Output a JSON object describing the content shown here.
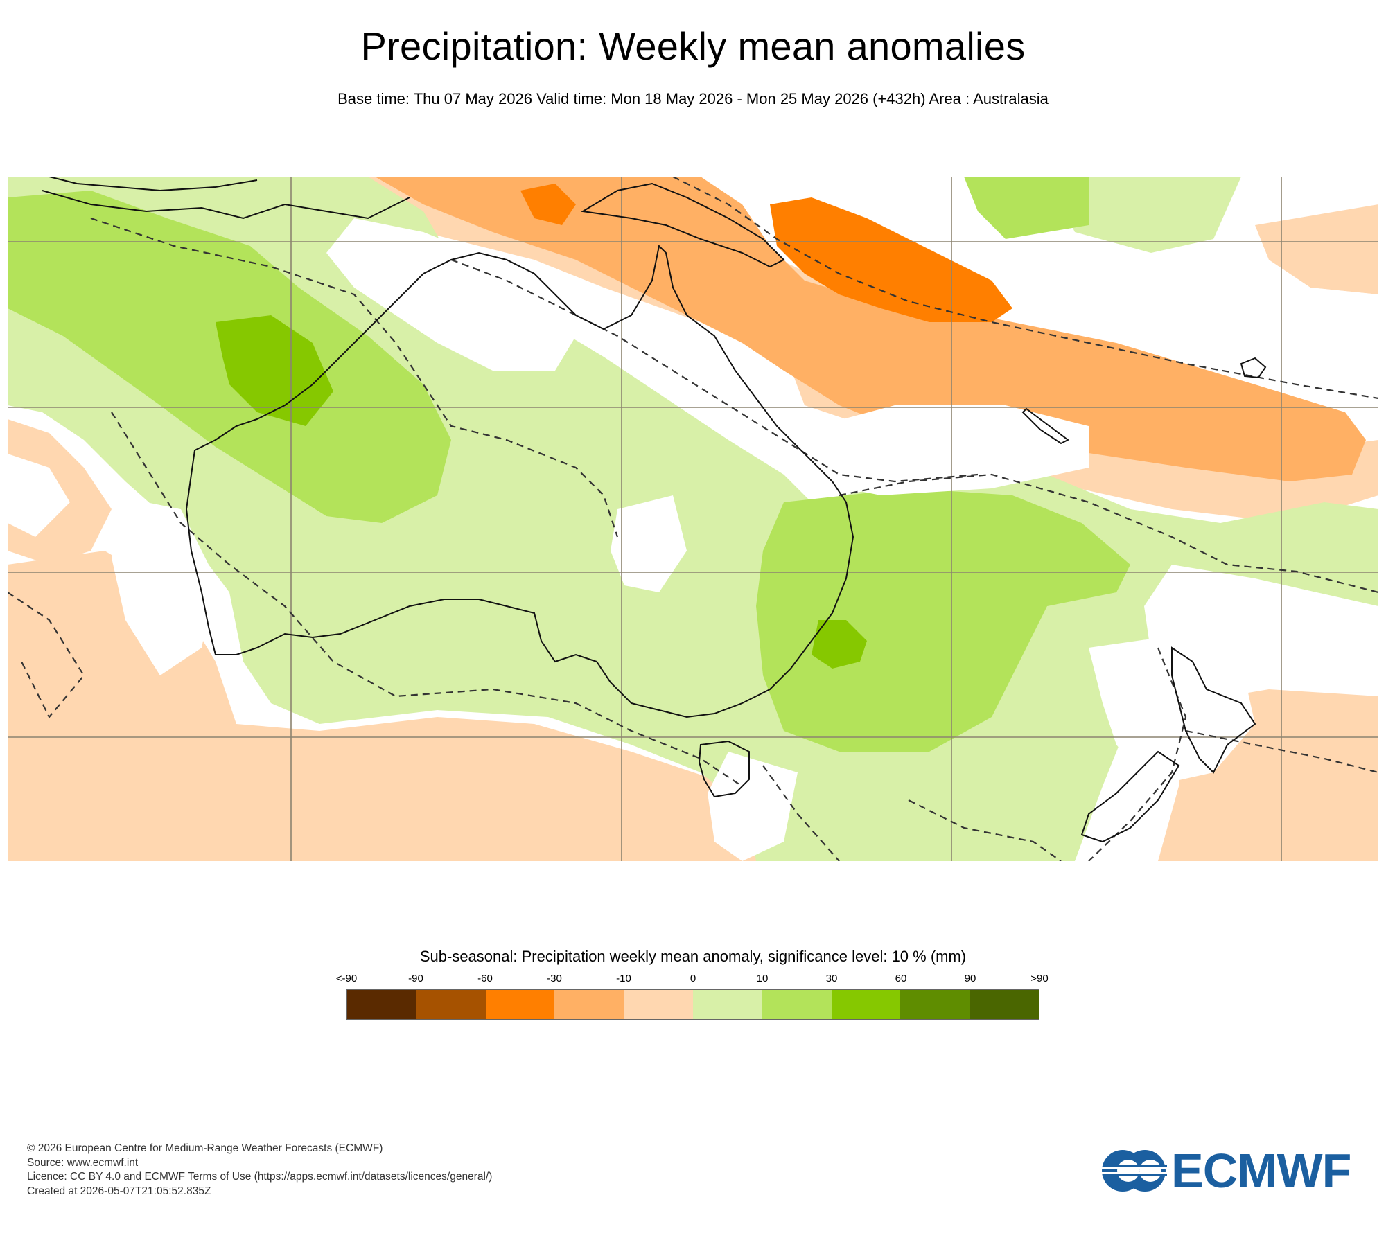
{
  "title": "Precipitation: Weekly mean anomalies",
  "subtitle": "Base time: Thu 07 May 2026 Valid time: Mon 18 May 2026 - Mon 25 May 2026 (+432h) Area : Australasia",
  "legend": {
    "title": "Sub-seasonal: Precipitation weekly mean anomaly, significance level: 10 % (mm)",
    "labels": [
      "<-90",
      "-90",
      "-60",
      "-30",
      "-10",
      "0",
      "10",
      "30",
      "60",
      "90",
      ">90"
    ],
    "colors": [
      "#5a2a00",
      "#a65200",
      "#ff7f00",
      "#ffb064",
      "#ffd7b0",
      "#d8f0a8",
      "#b3e35a",
      "#86c800",
      "#5f8d00",
      "#4a6600"
    ]
  },
  "colors": {
    "positive_light": "#d8f0a8",
    "positive_mid": "#b3e35a",
    "positive_strong": "#86c800",
    "negative_light": "#ffd7b0",
    "negative_mid": "#ffb064",
    "negative_strong": "#ff7f00",
    "logo_blue": "#1b5fa0"
  },
  "footer": {
    "copyright": "© 2026 European Centre for Medium-Range Weather Forecasts (ECMWF)",
    "source": "Source: www.ecmwf.int",
    "licence": "Licence: CC BY 4.0 and ECMWF Terms of Use (https://apps.ecmwf.int/datasets/licences/general/)",
    "created": "Created at 2026-05-07T21:05:52.835Z"
  },
  "logo": {
    "text": "ECMWF",
    "icon": "ecmwf-logo-icon"
  }
}
